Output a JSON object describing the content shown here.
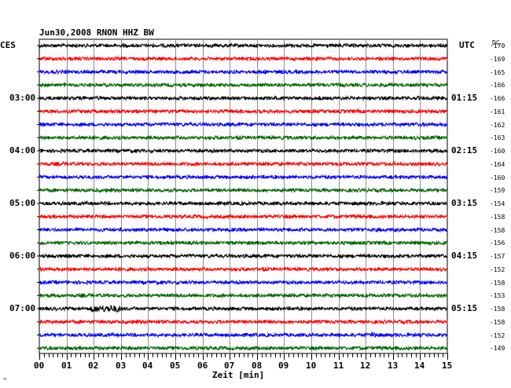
{
  "header": {
    "title": "Jun30,2008   RNON HHZ BW",
    "left_tz": "CES",
    "right_tz": "UTC",
    "dc_label": "DC"
  },
  "footer": {
    "xlabel": "Zeit [min]",
    "corner_mark": "^"
  },
  "chart_data": {
    "type": "line",
    "title": "Jun30,2008   RNON HHZ BW",
    "xlabel": "Zeit [min]",
    "x_ticks": [
      "00",
      "01",
      "02",
      "03",
      "04",
      "05",
      "06",
      "07",
      "08",
      "09",
      "10",
      "11",
      "12",
      "13",
      "14",
      "15"
    ],
    "xlim": [
      0,
      15
    ],
    "grid": true,
    "left_hour_labels": [
      "03:00",
      "04:00",
      "05:00",
      "06:00",
      "07:00"
    ],
    "right_hour_labels": [
      "01:15",
      "02:15",
      "03:15",
      "04:15",
      "05:15"
    ],
    "trace_colors": [
      "#000000",
      "#ff0000",
      "#0000ff",
      "#006400"
    ],
    "dc_offsets": [
      "-170",
      "-169",
      "-165",
      "-166",
      "-166",
      "-161",
      "-162",
      "-163",
      "-160",
      "-164",
      "-160",
      "-159",
      "-154",
      "-158",
      "-158",
      "-156",
      "-157",
      "-152",
      "-158",
      "-153",
      "-158",
      "-158",
      "-152",
      "-149"
    ],
    "events": [
      {
        "trace": 20,
        "minute_start": 1.9,
        "minute_end": 3.0,
        "note": "larger amplitude burst"
      },
      {
        "trace": 22,
        "minute_start": 12.2,
        "minute_end": 12.4,
        "note": "spike"
      }
    ]
  }
}
